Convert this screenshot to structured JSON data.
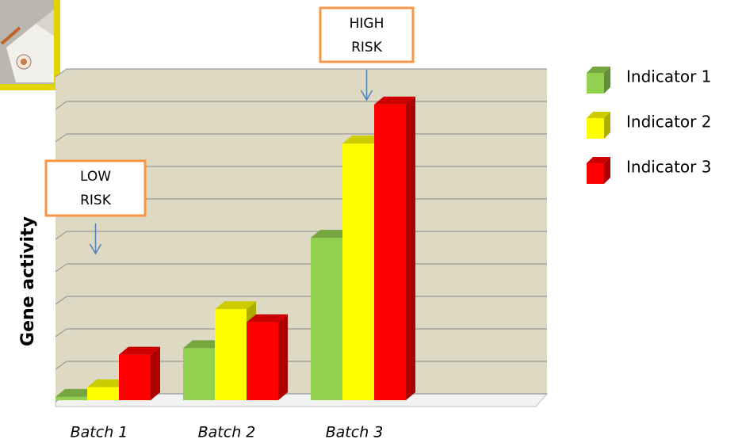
{
  "chart_data": {
    "type": "bar3d",
    "ylabel": "Gene activity",
    "categories": [
      "Batch 1",
      "Batch 2",
      "Batch 3"
    ],
    "series": [
      {
        "name": "Indicator 1",
        "color": "#92d050",
        "values": [
          0.1,
          1.6,
          5.0
        ]
      },
      {
        "name": "Indicator 2",
        "color": "#ffff00",
        "values": [
          0.4,
          2.8,
          7.9
        ]
      },
      {
        "name": "Indicator 3",
        "color": "#ff0000",
        "values": [
          1.4,
          2.4,
          9.1
        ]
      }
    ],
    "ylim": [
      0,
      10
    ],
    "yticks": [
      0,
      1,
      2,
      3,
      4,
      5,
      6,
      7,
      8,
      9,
      10
    ],
    "grid": true,
    "legend": "right",
    "annotations": [
      {
        "text": [
          "LOW",
          "RISK"
        ],
        "category": 0
      },
      {
        "text": [
          "HIGH",
          "RISK"
        ],
        "category": 2
      }
    ]
  }
}
